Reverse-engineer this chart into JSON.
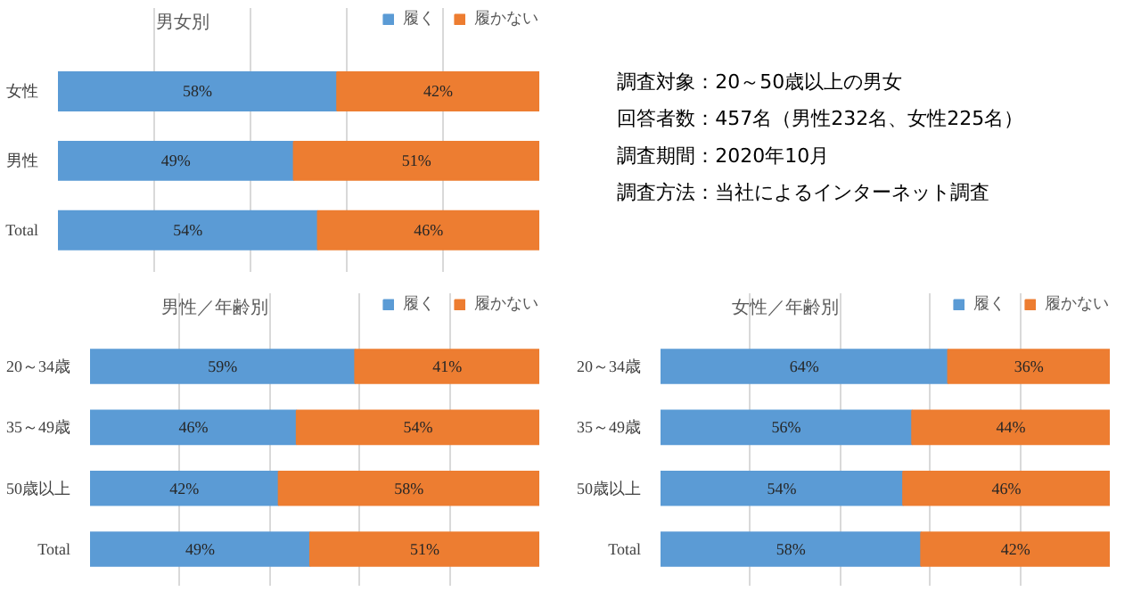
{
  "chart_data": [
    {
      "type": "bar",
      "orientation": "horizontal",
      "stacked": true,
      "title": "男女別",
      "categories": [
        "女性",
        "男性",
        "Total"
      ],
      "series": [
        {
          "name": "履く",
          "color": "#5b9bd5",
          "values": [
            58,
            49,
            54
          ],
          "value_labels": [
            "58%",
            "49%",
            "54%"
          ]
        },
        {
          "name": "履かない",
          "color": "#ed7d31",
          "values": [
            42,
            51,
            46
          ],
          "value_labels": [
            "42%",
            "51%",
            "46%"
          ]
        }
      ],
      "xlim": [
        0,
        100
      ],
      "xticks": [
        {
          "value": 20,
          "label": null
        },
        {
          "value": 40,
          "label": null
        },
        {
          "value": 60,
          "label": null
        },
        {
          "value": 80,
          "label": null
        }
      ],
      "grid": "x",
      "tick_labels": "y",
      "legend": "top right"
    },
    {
      "type": "other",
      "annotations": [
        "調査対象：20～50歳以上の男女",
        "回答者数：457名（男性232名、女性225名）",
        "調査期間：2020年10月",
        "調査方法：当社によるインターネット調査"
      ]
    },
    {
      "type": "bar",
      "orientation": "horizontal",
      "stacked": true,
      "title": "男性／年齢別",
      "categories": [
        "20～34歳",
        "35～49歳",
        "50歳以上",
        "Total"
      ],
      "series": [
        {
          "name": "履く",
          "color": "#5b9bd5",
          "values": [
            59,
            46,
            42,
            49
          ],
          "value_labels": [
            "59%",
            "46%",
            "42%",
            "49%"
          ]
        },
        {
          "name": "履かない",
          "color": "#ed7d31",
          "values": [
            41,
            54,
            58,
            51
          ],
          "value_labels": [
            "41%",
            "54%",
            "58%",
            "51%"
          ]
        }
      ],
      "xlim": [
        0,
        100
      ],
      "xticks": [
        {
          "value": 20,
          "label": null
        },
        {
          "value": 40,
          "label": null
        },
        {
          "value": 60,
          "label": null
        },
        {
          "value": 80,
          "label": null
        }
      ],
      "grid": "x",
      "tick_labels": "y",
      "legend": "top right"
    },
    {
      "type": "bar",
      "orientation": "horizontal",
      "stacked": true,
      "title": "女性／年齢別",
      "categories": [
        "20～34歳",
        "35～49歳",
        "50歳以上",
        "Total"
      ],
      "series": [
        {
          "name": "履く",
          "color": "#5b9bd5",
          "values": [
            64,
            56,
            54,
            58
          ],
          "value_labels": [
            "64%",
            "56%",
            "54%",
            "58%"
          ]
        },
        {
          "name": "履かない",
          "color": "#ed7d31",
          "values": [
            36,
            44,
            46,
            42
          ],
          "value_labels": [
            "36%",
            "44%",
            "46%",
            "42%"
          ]
        }
      ],
      "xlim": [
        0,
        100
      ],
      "xticks": [
        {
          "value": 20,
          "label": null
        },
        {
          "value": 40,
          "label": null
        },
        {
          "value": 60,
          "label": null
        },
        {
          "value": 80,
          "label": null
        }
      ],
      "grid": "x",
      "tick_labels": "y",
      "legend": "top right"
    }
  ]
}
